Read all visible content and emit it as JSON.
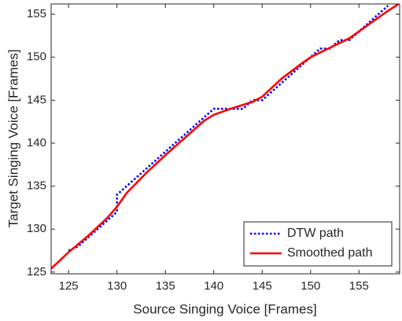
{
  "chart_data": {
    "type": "line",
    "x_label": "Source Singing Voice [Frames]",
    "y_label": "Target Singing Voice [Frames]",
    "xlim": [
      123.2,
      159.2
    ],
    "ylim": [
      124.8,
      156.2
    ],
    "xticks": [
      125,
      130,
      135,
      140,
      145,
      150,
      155
    ],
    "yticks": [
      125,
      130,
      135,
      140,
      145,
      150,
      155
    ],
    "legend": "lower right",
    "series": [
      {
        "name": "DTW path",
        "color": "#0000ff",
        "style": "dotted",
        "x": [
          125,
          126,
          127,
          128,
          129,
          130,
          130,
          130,
          131,
          132,
          133,
          134,
          135,
          136,
          137,
          138,
          139,
          140,
          141,
          142,
          143,
          144,
          145,
          146,
          147,
          148,
          149,
          150,
          151,
          152,
          153,
          154,
          155,
          156,
          157,
          158
        ],
        "values": [
          127.5,
          128,
          129,
          130,
          131,
          132,
          133,
          134,
          135,
          136,
          137,
          138,
          139,
          140,
          141,
          142,
          143,
          144,
          144,
          144,
          144,
          145,
          145,
          146,
          147,
          148,
          149,
          150,
          151,
          151,
          152,
          152,
          153,
          154,
          155,
          156
        ]
      },
      {
        "name": "Smoothed path",
        "color": "#ff0000",
        "style": "solid",
        "x": [
          123.2,
          125,
          127,
          129,
          130,
          131,
          133,
          135,
          137,
          139,
          140,
          142,
          144,
          145,
          147,
          149,
          150,
          152,
          154,
          155,
          156,
          157,
          158,
          159.1
        ],
        "values": [
          125.4,
          127.3,
          129.2,
          131.3,
          132.6,
          134.2,
          136.5,
          138.6,
          140.6,
          142.6,
          143.3,
          144.1,
          144.8,
          145.4,
          147.5,
          149.2,
          150,
          151.1,
          152.2,
          153,
          153.8,
          154.6,
          155.4,
          156.2
        ]
      }
    ]
  }
}
